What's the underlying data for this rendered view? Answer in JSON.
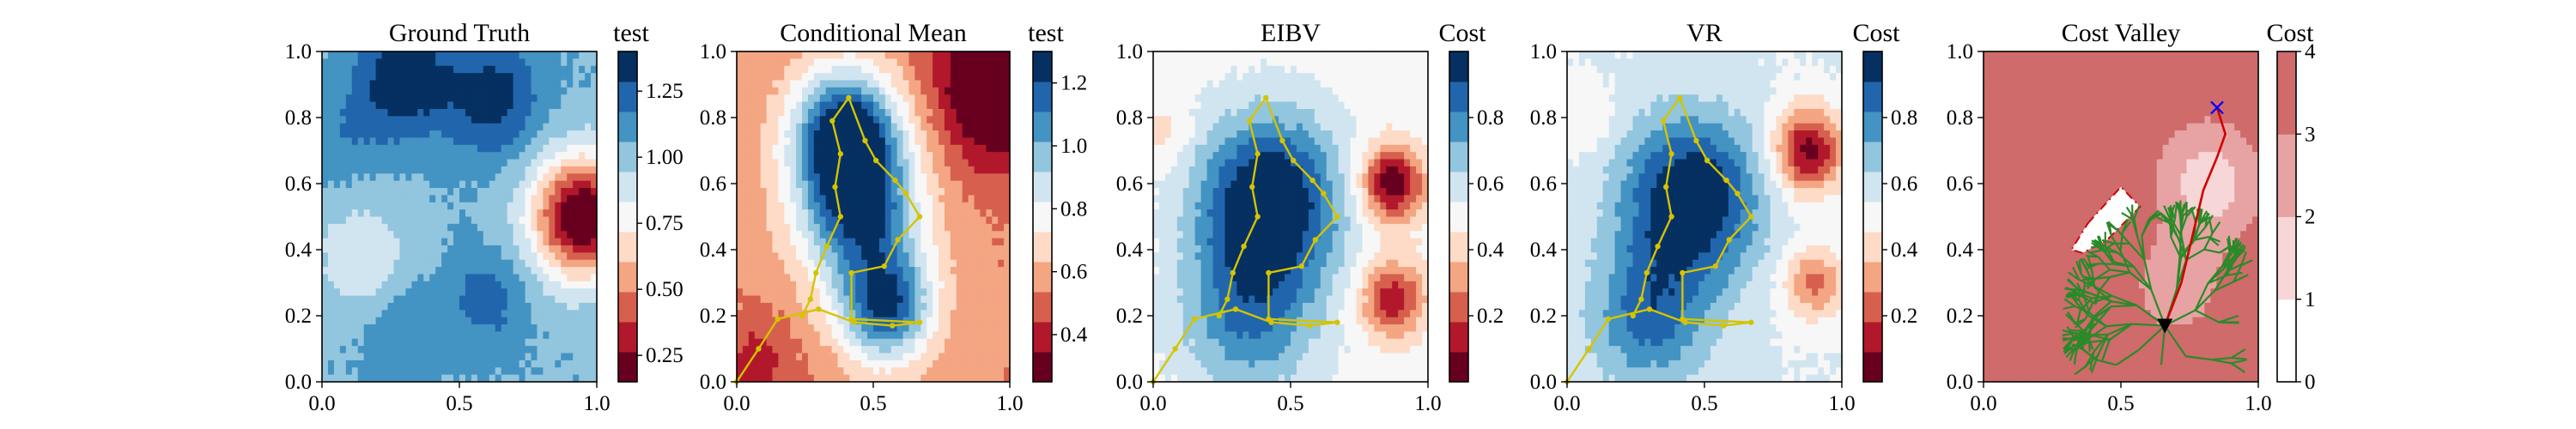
{
  "figure": {
    "palette_rdbu": [
      "#67001f",
      "#b2182b",
      "#d6604d",
      "#f4a582",
      "#fddbc7",
      "#f7f7f7",
      "#d1e5f0",
      "#92c5de",
      "#4393c3",
      "#2166ac",
      "#053061"
    ],
    "colors": {
      "path": "#d4c400",
      "tree": "#2a8a2a",
      "route": "#d00000",
      "polygon": "#d00000",
      "target_marker": "#0000ff",
      "start_marker": "#000000"
    }
  },
  "chart_data": [
    {
      "id": "ground-truth",
      "type": "heatmap",
      "title": "Ground Truth",
      "colorbar_label": "test",
      "xlim": [
        0,
        1
      ],
      "ylim": [
        0,
        1
      ],
      "x_ticks": [
        "0.0",
        "0.5",
        "1.0"
      ],
      "y_ticks": [
        "0.0",
        "0.2",
        "0.4",
        "0.6",
        "0.8",
        "1.0"
      ],
      "colorbar_range": [
        0.15,
        1.4
      ],
      "colorbar_ticks": [
        "0.25",
        "0.50",
        "0.75",
        "1.00",
        "1.25"
      ],
      "colorbar_tick_values": [
        0.25,
        0.5,
        0.75,
        1.0,
        1.25
      ],
      "field": {
        "base": 1.05,
        "blobs": [
          [
            0.3,
            0.92,
            0.12,
            0.35
          ],
          [
            0.62,
            0.86,
            0.12,
            0.3
          ],
          [
            0.95,
            0.5,
            0.13,
            -0.95
          ],
          [
            0.15,
            0.38,
            0.12,
            -0.2
          ],
          [
            0.6,
            0.25,
            0.1,
            0.18
          ],
          [
            0.3,
            0.15,
            0.1,
            0.12
          ],
          [
            0.1,
            0.75,
            0.1,
            0.1
          ]
        ]
      }
    },
    {
      "id": "conditional-mean",
      "type": "heatmap",
      "title": "Conditional Mean",
      "colorbar_label": "test",
      "xlim": [
        0,
        1
      ],
      "ylim": [
        0,
        1
      ],
      "x_ticks": [
        "0.0",
        "0.5",
        "1.0"
      ],
      "y_ticks": [
        "0.0",
        "0.2",
        "0.4",
        "0.6",
        "0.8",
        "1.0"
      ],
      "colorbar_range": [
        0.25,
        1.3
      ],
      "colorbar_ticks": [
        "0.4",
        "0.6",
        "0.8",
        "1.0",
        "1.2"
      ],
      "colorbar_tick_values": [
        0.4,
        0.6,
        0.8,
        1.0,
        1.2
      ],
      "field": {
        "base": 0.55,
        "blobs": [
          [
            0.4,
            0.75,
            0.14,
            0.75
          ],
          [
            0.45,
            0.5,
            0.16,
            0.6
          ],
          [
            0.55,
            0.22,
            0.12,
            0.6
          ],
          [
            0.97,
            0.9,
            0.17,
            -0.42
          ],
          [
            0.07,
            0.05,
            0.1,
            -0.15
          ]
        ]
      },
      "path": [
        [
          0.0,
          0.0
        ],
        [
          0.08,
          0.1
        ],
        [
          0.15,
          0.19
        ],
        [
          0.3,
          0.22
        ],
        [
          0.43,
          0.18
        ],
        [
          0.57,
          0.17
        ],
        [
          0.67,
          0.18
        ],
        [
          0.42,
          0.19
        ],
        [
          0.42,
          0.33
        ],
        [
          0.54,
          0.35
        ],
        [
          0.59,
          0.43
        ],
        [
          0.67,
          0.5
        ],
        [
          0.62,
          0.57
        ],
        [
          0.58,
          0.61
        ],
        [
          0.51,
          0.67
        ],
        [
          0.47,
          0.73
        ],
        [
          0.41,
          0.86
        ],
        [
          0.35,
          0.79
        ],
        [
          0.38,
          0.69
        ],
        [
          0.36,
          0.59
        ],
        [
          0.38,
          0.5
        ],
        [
          0.33,
          0.41
        ],
        [
          0.29,
          0.33
        ],
        [
          0.27,
          0.25
        ],
        [
          0.24,
          0.2
        ]
      ]
    },
    {
      "id": "eibv",
      "type": "heatmap",
      "title": "EIBV",
      "colorbar_label": "Cost",
      "xlim": [
        0,
        1
      ],
      "ylim": [
        0,
        1
      ],
      "x_ticks": [
        "0.0",
        "0.5",
        "1.0"
      ],
      "y_ticks": [
        "0.0",
        "0.2",
        "0.4",
        "0.6",
        "0.8",
        "1.0"
      ],
      "colorbar_range": [
        0.0,
        1.0
      ],
      "colorbar_ticks": [
        "0.2",
        "0.4",
        "0.6",
        "0.8"
      ],
      "colorbar_tick_values": [
        0.2,
        0.4,
        0.6,
        0.8
      ],
      "field": {
        "base": 0.5,
        "blobs": [
          [
            0.42,
            0.55,
            0.18,
            0.55
          ],
          [
            0.35,
            0.2,
            0.18,
            0.3
          ],
          [
            0.87,
            0.6,
            0.08,
            -0.5
          ],
          [
            0.87,
            0.25,
            0.08,
            -0.4
          ],
          [
            0.05,
            0.75,
            0.06,
            -0.1
          ]
        ]
      },
      "path": [
        [
          0.0,
          0.0
        ],
        [
          0.08,
          0.1
        ],
        [
          0.15,
          0.19
        ],
        [
          0.3,
          0.22
        ],
        [
          0.43,
          0.18
        ],
        [
          0.57,
          0.17
        ],
        [
          0.67,
          0.18
        ],
        [
          0.42,
          0.19
        ],
        [
          0.42,
          0.33
        ],
        [
          0.54,
          0.35
        ],
        [
          0.59,
          0.43
        ],
        [
          0.67,
          0.5
        ],
        [
          0.62,
          0.57
        ],
        [
          0.58,
          0.61
        ],
        [
          0.51,
          0.67
        ],
        [
          0.47,
          0.73
        ],
        [
          0.41,
          0.86
        ],
        [
          0.35,
          0.79
        ],
        [
          0.38,
          0.69
        ],
        [
          0.36,
          0.59
        ],
        [
          0.38,
          0.5
        ],
        [
          0.33,
          0.41
        ],
        [
          0.29,
          0.33
        ],
        [
          0.27,
          0.25
        ],
        [
          0.24,
          0.2
        ]
      ]
    },
    {
      "id": "vr",
      "type": "heatmap",
      "title": "VR",
      "colorbar_label": "Cost",
      "xlim": [
        0,
        1
      ],
      "ylim": [
        0,
        1
      ],
      "x_ticks": [
        "0.0",
        "0.5",
        "1.0"
      ],
      "y_ticks": [
        "0.0",
        "0.2",
        "0.4",
        "0.6",
        "0.8",
        "1.0"
      ],
      "colorbar_range": [
        0.0,
        1.0
      ],
      "colorbar_ticks": [
        "0.2",
        "0.4",
        "0.6",
        "0.8"
      ],
      "colorbar_tick_values": [
        0.2,
        0.4,
        0.6,
        0.8
      ],
      "field": {
        "base": 0.55,
        "blobs": [
          [
            0.45,
            0.55,
            0.17,
            0.5
          ],
          [
            0.3,
            0.2,
            0.15,
            0.3
          ],
          [
            0.88,
            0.7,
            0.09,
            -0.5
          ],
          [
            0.9,
            0.3,
            0.08,
            -0.3
          ],
          [
            0.05,
            0.8,
            0.08,
            -0.1
          ]
        ]
      },
      "path": [
        [
          0.0,
          0.0
        ],
        [
          0.08,
          0.1
        ],
        [
          0.15,
          0.19
        ],
        [
          0.3,
          0.22
        ],
        [
          0.43,
          0.18
        ],
        [
          0.57,
          0.17
        ],
        [
          0.67,
          0.18
        ],
        [
          0.42,
          0.19
        ],
        [
          0.42,
          0.33
        ],
        [
          0.54,
          0.35
        ],
        [
          0.59,
          0.43
        ],
        [
          0.67,
          0.5
        ],
        [
          0.62,
          0.57
        ],
        [
          0.58,
          0.61
        ],
        [
          0.51,
          0.67
        ],
        [
          0.47,
          0.73
        ],
        [
          0.41,
          0.86
        ],
        [
          0.35,
          0.79
        ],
        [
          0.38,
          0.69
        ],
        [
          0.36,
          0.59
        ],
        [
          0.38,
          0.5
        ],
        [
          0.33,
          0.41
        ],
        [
          0.29,
          0.33
        ],
        [
          0.27,
          0.25
        ],
        [
          0.24,
          0.2
        ]
      ]
    },
    {
      "id": "cost-valley",
      "type": "heatmap",
      "title": "Cost Valley",
      "colorbar_label": "Cost",
      "xlim": [
        0,
        1
      ],
      "ylim": [
        0,
        1
      ],
      "x_ticks": [
        "0.0",
        "0.5",
        "1.0"
      ],
      "y_ticks": [
        "0.0",
        "0.2",
        "0.4",
        "0.6",
        "0.8",
        "1.0"
      ],
      "colorbar_range": [
        0,
        4
      ],
      "colorbar_ticks": [
        "0",
        "1",
        "2",
        "3",
        "4"
      ],
      "colorbar_tick_values": [
        0,
        1,
        2,
        3,
        4
      ],
      "colormap": [
        "#ffffff",
        "#f6d6d6",
        "#e7a3a3",
        "#cf6b6b"
      ],
      "field": {
        "base": 3.6,
        "blobs": [
          [
            0.82,
            0.6,
            0.12,
            -2.2
          ],
          [
            0.7,
            0.3,
            0.1,
            -1.4
          ],
          [
            0.5,
            0.45,
            0.08,
            0.4
          ]
        ]
      },
      "polygon": [
        [
          0.38,
          0.48
        ],
        [
          0.5,
          0.59
        ],
        [
          0.57,
          0.53
        ],
        [
          0.45,
          0.43
        ],
        [
          0.36,
          0.39
        ],
        [
          0.32,
          0.4
        ]
      ],
      "start": [
        0.66,
        0.17
      ],
      "target": [
        0.85,
        0.83
      ],
      "route": [
        [
          0.66,
          0.17
        ],
        [
          0.72,
          0.3
        ],
        [
          0.76,
          0.44
        ],
        [
          0.8,
          0.58
        ],
        [
          0.85,
          0.68
        ],
        [
          0.88,
          0.75
        ],
        [
          0.85,
          0.83
        ]
      ]
    }
  ]
}
